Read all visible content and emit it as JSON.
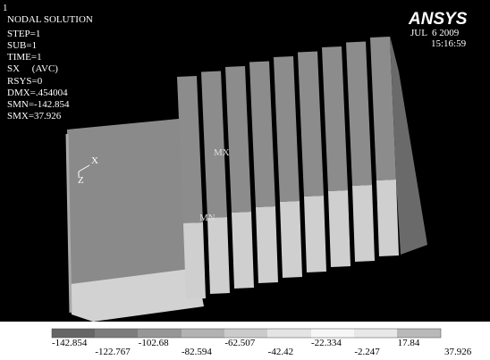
{
  "viewport": {
    "window_number": "1",
    "info": [
      "NODAL SOLUTION",
      "STEP=1",
      "SUB=1",
      "TIME=1",
      "SX     (AVC)",
      "RSYS=0",
      "DMX=.454004",
      "SMN=-142.854",
      "SMX=37.926"
    ],
    "logo": "ANSYS",
    "date": "JUL  6 2009",
    "time": "15:16:59",
    "model_labels": {
      "max": "MX",
      "min": "MN",
      "axis_x": "X",
      "axis_z": "Z"
    }
  },
  "legend": {
    "labels": [
      "-142.854",
      "-122.767",
      "-102.68",
      "-82.594",
      "-62.507",
      "-42.42",
      "-22.334",
      "-2.247",
      "17.84",
      "37.926"
    ]
  }
}
